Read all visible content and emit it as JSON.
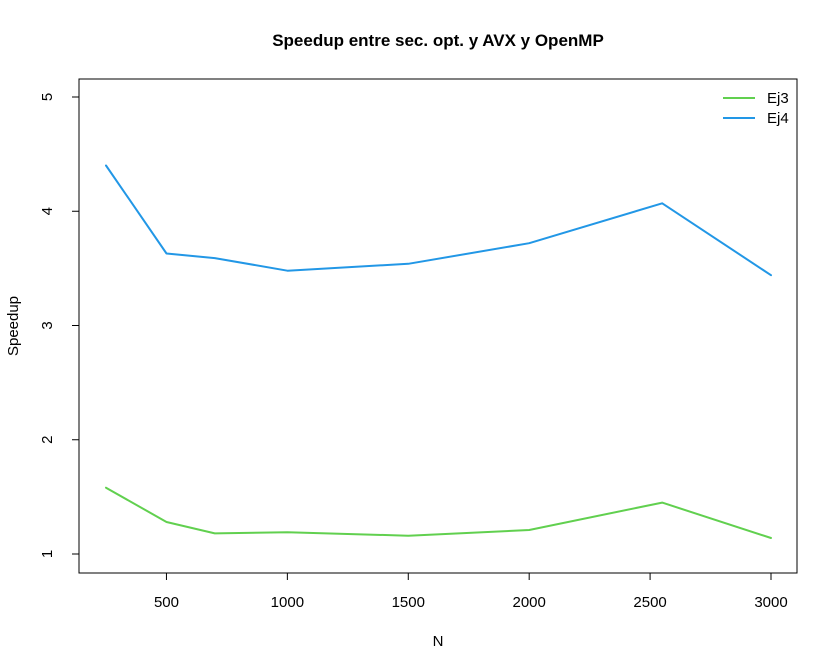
{
  "chart_data": {
    "type": "line",
    "title": "Speedup entre sec. opt. y AVX y OpenMP",
    "xlabel": "N",
    "ylabel": "Speedup",
    "xlim": [
      250,
      3000
    ],
    "ylim": [
      1,
      5
    ],
    "x_ticks": [
      "500",
      "1000",
      "1500",
      "2000",
      "2500",
      "3000"
    ],
    "y_ticks": [
      "1",
      "2",
      "3",
      "4",
      "5"
    ],
    "x": [
      250,
      500,
      700,
      1000,
      1500,
      2000,
      2550,
      3000
    ],
    "series": [
      {
        "name": "Ej3",
        "color": "#61d04f",
        "values": [
          1.58,
          1.28,
          1.18,
          1.19,
          1.16,
          1.21,
          1.45,
          1.14
        ]
      },
      {
        "name": "Ej4",
        "color": "#2297e6",
        "values": [
          4.4,
          3.63,
          3.59,
          3.48,
          3.54,
          3.72,
          4.07,
          3.44
        ]
      }
    ],
    "legend_position": "top-right",
    "grid": false
  }
}
